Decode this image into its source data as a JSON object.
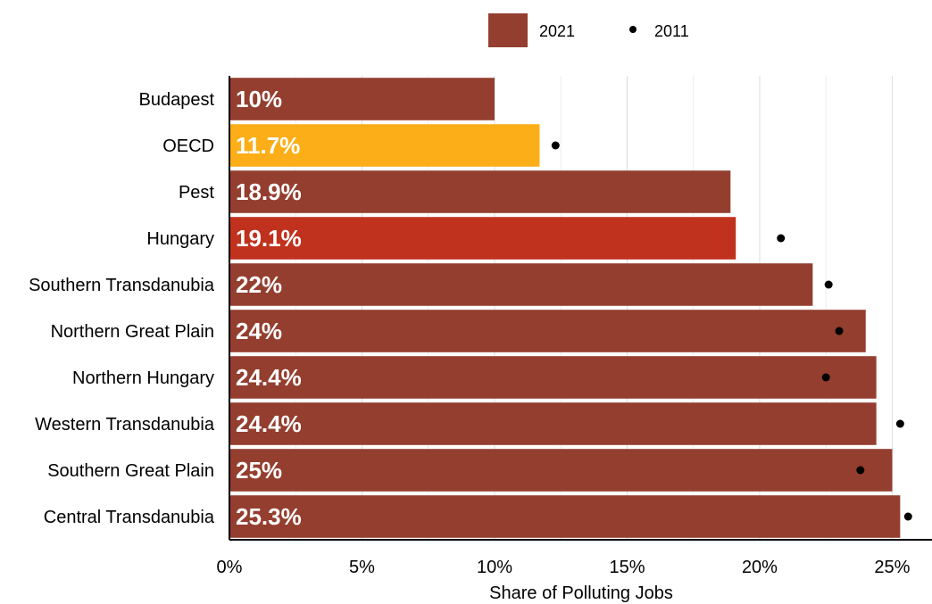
{
  "chart_data": {
    "type": "bar",
    "orientation": "horizontal",
    "xlabel": "Share of Polluting Jobs",
    "xlim": [
      0,
      26.5
    ],
    "x_ticks": [
      0,
      5,
      10,
      15,
      20,
      25
    ],
    "x_tick_labels": [
      "0%",
      "5%",
      "10%",
      "15%",
      "20%",
      "25%"
    ],
    "grid": true,
    "legend_position": "top",
    "legend": [
      {
        "name": "2021",
        "marker": "bar",
        "color": "#943e2f"
      },
      {
        "name": "2011",
        "marker": "dot",
        "color": "#000000"
      }
    ],
    "categories": [
      "Budapest",
      "OECD",
      "Pest",
      "Hungary",
      "Southern Transdanubia",
      "Northern Great Plain",
      "Northern Hungary",
      "Western Transdanubia",
      "Southern Great Plain",
      "Central Transdanubia"
    ],
    "series": [
      {
        "name": "2021",
        "values": [
          10.0,
          11.7,
          18.9,
          19.1,
          22.0,
          24.0,
          24.4,
          24.4,
          25.0,
          25.3
        ],
        "labels": [
          "10%",
          "11.7%",
          "18.9%",
          "19.1%",
          "22%",
          "24%",
          "24.4%",
          "24.4%",
          "25%",
          "25.3%"
        ],
        "colors": [
          "#943e2f",
          "#fbae17",
          "#943e2f",
          "#c0321d",
          "#943e2f",
          "#943e2f",
          "#943e2f",
          "#943e2f",
          "#943e2f",
          "#943e2f"
        ]
      },
      {
        "name": "2011",
        "values": [
          null,
          12.3,
          null,
          20.8,
          22.6,
          23.0,
          22.5,
          25.3,
          23.8,
          25.6
        ]
      }
    ]
  }
}
